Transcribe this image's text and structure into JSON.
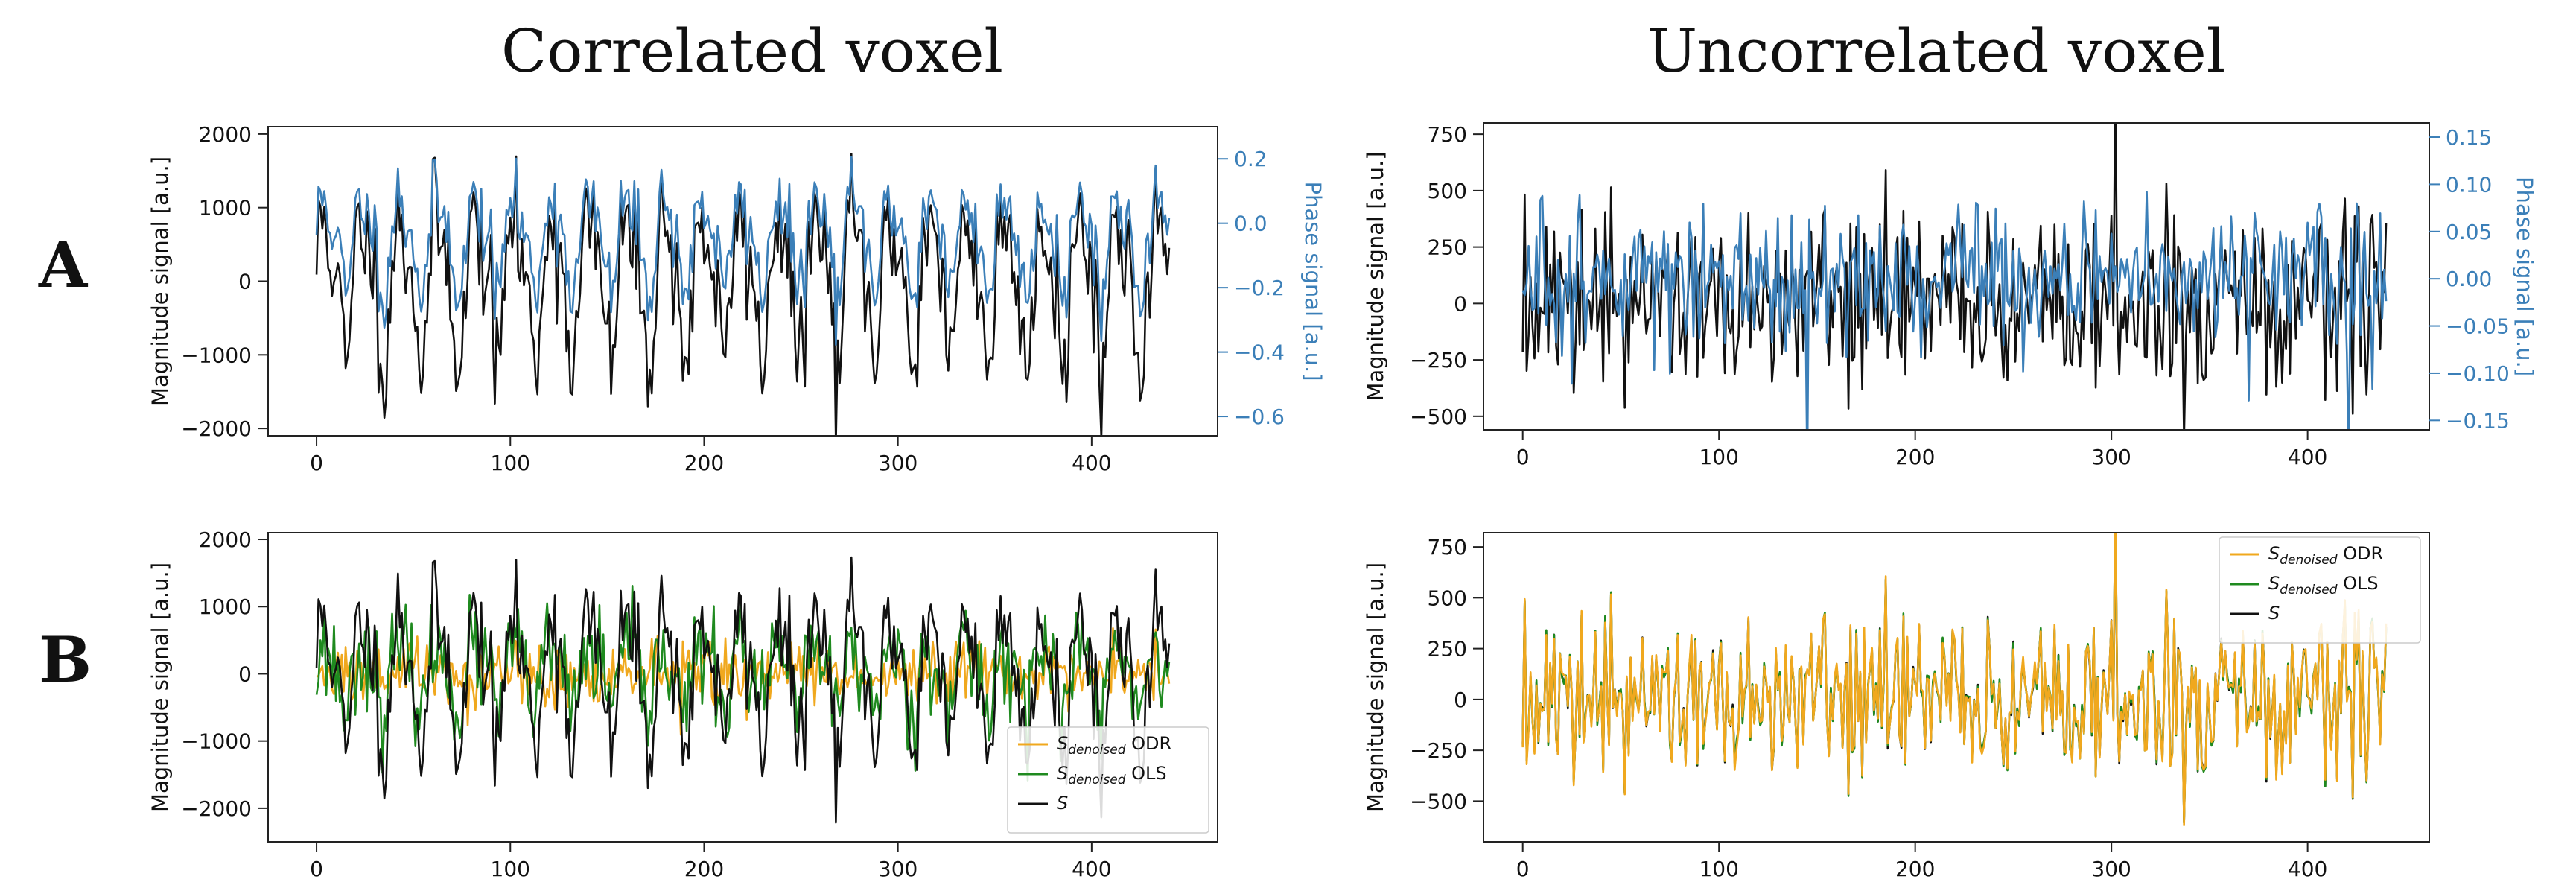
{
  "column_titles": [
    "Correlated voxel",
    "Uncorrelated voxel"
  ],
  "row_labels": [
    "A",
    "B"
  ],
  "colors": {
    "magnitude": "#111111",
    "phase": "#3b7fb8",
    "odr": "#f0a81e",
    "ols": "#1f8a1f",
    "s": "#111111"
  },
  "chart_data": [
    {
      "id": "A-correlated",
      "type": "line",
      "title": "",
      "xlabel": "",
      "ylabel": "Magnitude signal [a.u.]",
      "ylabel_right": "Phase signal [a.u.]",
      "xlim": [
        -25,
        465
      ],
      "ylim": [
        -2100,
        2100
      ],
      "ylim_right": [
        -0.66,
        0.3
      ],
      "xticks": [
        0,
        100,
        200,
        300,
        400
      ],
      "xtick_labels": [
        "0",
        "100",
        "200",
        "300",
        "400"
      ],
      "yticks": [
        -2000,
        -1000,
        0,
        1000,
        2000
      ],
      "ytick_labels": [
        "−2000",
        "−1000",
        "0",
        "1000",
        "2000"
      ],
      "yticks_right": [
        -0.6,
        -0.4,
        -0.2,
        0.0,
        0.2
      ],
      "ytick_labels_right": [
        "−0.6",
        "−0.4",
        "−0.2",
        "0.0",
        "0.2"
      ],
      "series": [
        {
          "name": "Magnitude",
          "axis": "left",
          "color": "#111111",
          "n": 441,
          "amp": 1150,
          "noise": 0.35,
          "period": 19.5,
          "seed": 11,
          "corr": true
        },
        {
          "name": "Phase",
          "axis": "right",
          "color": "#3b7fb8",
          "n": 441,
          "amp": 0.17,
          "offset": -0.05,
          "noise": 0.35,
          "period": 19.5,
          "seed": 11,
          "corr": true,
          "phase_of": true
        }
      ],
      "legend": []
    },
    {
      "id": "A-uncorrelated",
      "type": "line",
      "title": "",
      "xlabel": "",
      "ylabel": "Magnitude signal [a.u.]",
      "ylabel_right": "Phase signal [a.u.]",
      "xlim": [
        -20,
        462
      ],
      "ylim": [
        -560,
        800
      ],
      "ylim_right": [
        -0.16,
        0.165
      ],
      "xticks": [
        0,
        100,
        200,
        300,
        400
      ],
      "xtick_labels": [
        "0",
        "100",
        "200",
        "300",
        "400"
      ],
      "yticks": [
        -500,
        -250,
        0,
        250,
        500,
        750
      ],
      "ytick_labels": [
        "−500",
        "−250",
        "0",
        "250",
        "500",
        "750"
      ],
      "yticks_right": [
        -0.15,
        -0.1,
        -0.05,
        0.0,
        0.05,
        0.1,
        0.15
      ],
      "ytick_labels_right": [
        "−0.15",
        "−0.10",
        "−0.05",
        "0.00",
        "0.05",
        "0.10",
        "0.15"
      ],
      "series": [
        {
          "name": "Magnitude",
          "axis": "left",
          "color": "#111111",
          "n": 441,
          "amp": 230,
          "noise": 1.0,
          "seed": 37,
          "corr": false
        },
        {
          "name": "Phase",
          "axis": "right",
          "color": "#3b7fb8",
          "n": 441,
          "amp": 0.045,
          "noise": 1.0,
          "seed": 71,
          "corr": false
        }
      ],
      "legend": []
    },
    {
      "id": "B-correlated",
      "type": "line",
      "title": "",
      "xlabel": "",
      "ylabel": "Magnitude signal [a.u.]",
      "xlim": [
        -25,
        465
      ],
      "ylim": [
        -2500,
        2100
      ],
      "xticks": [
        0,
        100,
        200,
        300,
        400
      ],
      "xtick_labels": [
        "0",
        "100",
        "200",
        "300",
        "400"
      ],
      "yticks": [
        -2000,
        -1000,
        0,
        1000,
        2000
      ],
      "ytick_labels": [
        "−2000",
        "−1000",
        "0",
        "1000",
        "2000"
      ],
      "series": [
        {
          "name": "S_denoised ODR",
          "color": "#f0a81e",
          "n": 441,
          "amp": 280,
          "noise": 1.0,
          "seed": 5,
          "corr": false
        },
        {
          "name": "S_denoised OLS",
          "color": "#1f8a1f",
          "n": 441,
          "amp": 520,
          "noise": 0.7,
          "period": 19.5,
          "seed": 23,
          "corr": true
        },
        {
          "name": "S",
          "color": "#111111",
          "n": 441,
          "amp": 1150,
          "noise": 0.35,
          "period": 19.5,
          "seed": 11,
          "corr": true
        }
      ],
      "legend": [
        {
          "main": "S",
          "sub": "denoised",
          "suffix": " ODR",
          "color": "#f0a81e"
        },
        {
          "main": "S",
          "sub": "denoised",
          "suffix": " OLS",
          "color": "#1f8a1f"
        },
        {
          "main": "S",
          "sub": "",
          "suffix": "",
          "color": "#111111"
        }
      ],
      "legend_loc": "lower-right"
    },
    {
      "id": "B-uncorrelated",
      "type": "line",
      "title": "",
      "xlabel": "",
      "ylabel": "Magnitude signal [a.u.]",
      "xlim": [
        -20,
        462
      ],
      "ylim": [
        -700,
        820
      ],
      "xticks": [
        0,
        100,
        200,
        300,
        400
      ],
      "xtick_labels": [
        "0",
        "100",
        "200",
        "300",
        "400"
      ],
      "yticks": [
        -500,
        -250,
        0,
        250,
        500,
        750
      ],
      "ytick_labels": [
        "−500",
        "−250",
        "0",
        "250",
        "500",
        "750"
      ],
      "series": [
        {
          "name": "S",
          "color": "#111111",
          "n": 441,
          "amp": 230,
          "noise": 1.0,
          "seed": 37,
          "corr": false
        },
        {
          "name": "S_denoised OLS",
          "color": "#1f8a1f",
          "n": 441,
          "amp": 230,
          "noise": 1.0,
          "seed": 37,
          "corr": false,
          "jitter": 8
        },
        {
          "name": "S_denoised ODR",
          "color": "#f0a81e",
          "n": 441,
          "amp": 232,
          "noise": 1.0,
          "seed": 37,
          "corr": false,
          "jitter": 14
        }
      ],
      "legend": [
        {
          "main": "S",
          "sub": "denoised",
          "suffix": " ODR",
          "color": "#f0a81e"
        },
        {
          "main": "S",
          "sub": "denoised",
          "suffix": " OLS",
          "color": "#1f8a1f"
        },
        {
          "main": "S",
          "sub": "",
          "suffix": "",
          "color": "#111111"
        }
      ],
      "legend_loc": "upper-right"
    }
  ]
}
